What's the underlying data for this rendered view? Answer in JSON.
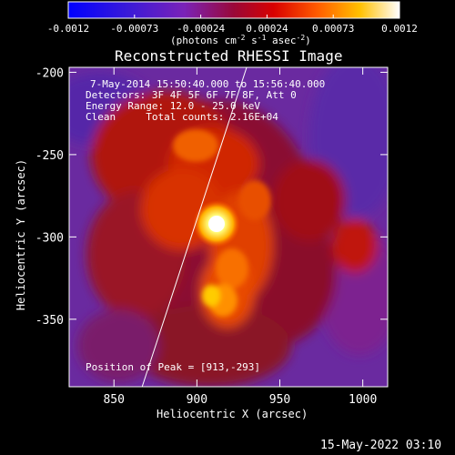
{
  "colorbar": {
    "ticks": [
      "-0.0012",
      "-0.00073",
      "-0.00024",
      "0.00024",
      "0.00073",
      "0.0012"
    ],
    "unit_prefix": "(photons cm",
    "unit_exp1": "-2",
    "unit_mid1": " s",
    "unit_exp2": "-1",
    "unit_mid2": " asec",
    "unit_exp3": "-2",
    "unit_suffix": ")"
  },
  "title": "Reconstructed RHESSI Image",
  "info": {
    "time": "7-May-2014 15:50:40.000 to 15:56:40.000",
    "detectors": "Detectors: 3F 4F 5F 6F 7F 8F, Att 0",
    "energy": "Energy Range: 12.0 - 25.0 keV",
    "clean": "Clean     Total counts: 2.16E+04"
  },
  "peak_label": "Position of Peak = [913,-293]",
  "timestamp": "15-May-2022 03:10",
  "chart_data": {
    "type": "heatmap",
    "title": "Reconstructed RHESSI Image",
    "xlabel": "Heliocentric X (arcsec)",
    "ylabel": "Heliocentric Y (arcsec)",
    "xlim": [
      823,
      1015
    ],
    "ylim": [
      -391,
      -197
    ],
    "xticks": [
      "850",
      "900",
      "950",
      "1000"
    ],
    "yticks": [
      "-200",
      "-250",
      "-300",
      "-350"
    ],
    "xtick_values": [
      850,
      900,
      950,
      1000
    ],
    "ytick_values": [
      -200,
      -250,
      -300,
      -350
    ],
    "colorbar_range": [
      -0.0012,
      0.0012
    ],
    "colormap": "rainbow-to-hot (blue, purple, red, orange, yellow, white)",
    "peak": {
      "x": 913,
      "y": -293
    },
    "secondary_source": {
      "x": 908,
      "y": -336
    },
    "limb_line": [
      {
        "x": 867,
        "y": -391
      },
      {
        "x": 930,
        "y": -197
      }
    ]
  }
}
